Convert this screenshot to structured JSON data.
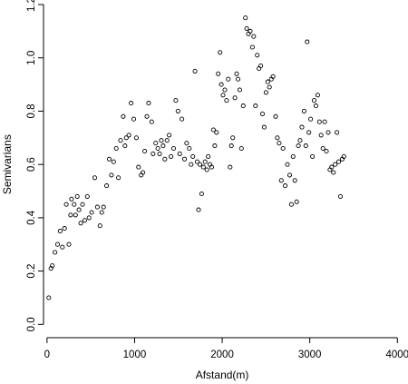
{
  "chart_data": {
    "type": "scatter",
    "title": "",
    "xlabel": "Afstand(m)",
    "ylabel": "Semivarians",
    "xlim": [
      -40,
      4080
    ],
    "ylim": [
      -0.05,
      1.2
    ],
    "xticks": [
      0,
      1000,
      2000,
      3000,
      4000
    ],
    "yticks": [
      0.0,
      0.2,
      0.4,
      0.6,
      0.8,
      1.0,
      1.2
    ],
    "xtick_labels": [
      "0",
      "1000",
      "2000",
      "3000",
      "4000"
    ],
    "ytick_labels": [
      "0.0",
      "0.2",
      "0.4",
      "0.6",
      "0.8",
      "1.0",
      "1.2"
    ],
    "grid": false,
    "marker": "open-circle",
    "points": [
      [
        20,
        0.1
      ],
      [
        45,
        0.21
      ],
      [
        60,
        0.22
      ],
      [
        90,
        0.27
      ],
      [
        120,
        0.3
      ],
      [
        150,
        0.35
      ],
      [
        175,
        0.29
      ],
      [
        200,
        0.36
      ],
      [
        220,
        0.45
      ],
      [
        250,
        0.3
      ],
      [
        270,
        0.41
      ],
      [
        280,
        0.47
      ],
      [
        310,
        0.45
      ],
      [
        325,
        0.41
      ],
      [
        345,
        0.48
      ],
      [
        365,
        0.43
      ],
      [
        385,
        0.38
      ],
      [
        405,
        0.45
      ],
      [
        430,
        0.39
      ],
      [
        460,
        0.48
      ],
      [
        480,
        0.4
      ],
      [
        510,
        0.42
      ],
      [
        545,
        0.55
      ],
      [
        575,
        0.44
      ],
      [
        605,
        0.37
      ],
      [
        625,
        0.42
      ],
      [
        645,
        0.44
      ],
      [
        680,
        0.52
      ],
      [
        710,
        0.62
      ],
      [
        735,
        0.56
      ],
      [
        760,
        0.61
      ],
      [
        790,
        0.66
      ],
      [
        815,
        0.55
      ],
      [
        840,
        0.69
      ],
      [
        870,
        0.78
      ],
      [
        890,
        0.67
      ],
      [
        905,
        0.7
      ],
      [
        935,
        0.71
      ],
      [
        960,
        0.83
      ],
      [
        990,
        0.77
      ],
      [
        1020,
        0.7
      ],
      [
        1045,
        0.59
      ],
      [
        1075,
        0.56
      ],
      [
        1095,
        0.57
      ],
      [
        1115,
        0.65
      ],
      [
        1140,
        0.78
      ],
      [
        1160,
        0.83
      ],
      [
        1195,
        0.76
      ],
      [
        1210,
        0.64
      ],
      [
        1240,
        0.68
      ],
      [
        1265,
        0.66
      ],
      [
        1285,
        0.64
      ],
      [
        1305,
        0.69
      ],
      [
        1325,
        0.67
      ],
      [
        1345,
        0.62
      ],
      [
        1370,
        0.69
      ],
      [
        1395,
        0.71
      ],
      [
        1415,
        0.63
      ],
      [
        1445,
        0.66
      ],
      [
        1470,
        0.84
      ],
      [
        1495,
        0.8
      ],
      [
        1515,
        0.64
      ],
      [
        1540,
        0.77
      ],
      [
        1570,
        0.62
      ],
      [
        1595,
        0.68
      ],
      [
        1625,
        0.66
      ],
      [
        1645,
        0.6
      ],
      [
        1665,
        0.63
      ],
      [
        1690,
        0.95
      ],
      [
        1715,
        0.61
      ],
      [
        1730,
        0.43
      ],
      [
        1745,
        0.6
      ],
      [
        1765,
        0.49
      ],
      [
        1785,
        0.59
      ],
      [
        1805,
        0.61
      ],
      [
        1825,
        0.58
      ],
      [
        1840,
        0.63
      ],
      [
        1860,
        0.6
      ],
      [
        1880,
        0.59
      ],
      [
        1900,
        0.73
      ],
      [
        1915,
        0.67
      ],
      [
        1935,
        0.72
      ],
      [
        1955,
        0.94
      ],
      [
        1975,
        1.02
      ],
      [
        1990,
        0.9
      ],
      [
        2010,
        0.86
      ],
      [
        2030,
        0.88
      ],
      [
        2050,
        0.84
      ],
      [
        2070,
        0.92
      ],
      [
        2090,
        0.59
      ],
      [
        2105,
        0.67
      ],
      [
        2120,
        0.7
      ],
      [
        2145,
        0.85
      ],
      [
        2165,
        0.94
      ],
      [
        2180,
        0.92
      ],
      [
        2200,
        0.88
      ],
      [
        2220,
        0.66
      ],
      [
        2240,
        0.82
      ],
      [
        2265,
        1.15
      ],
      [
        2280,
        1.11
      ],
      [
        2300,
        1.09
      ],
      [
        2320,
        1.1
      ],
      [
        2345,
        1.04
      ],
      [
        2360,
        1.08
      ],
      [
        2380,
        0.82
      ],
      [
        2400,
        1.01
      ],
      [
        2420,
        0.96
      ],
      [
        2440,
        0.97
      ],
      [
        2460,
        0.79
      ],
      [
        2480,
        0.74
      ],
      [
        2500,
        0.87
      ],
      [
        2520,
        0.91
      ],
      [
        2540,
        0.89
      ],
      [
        2560,
        0.92
      ],
      [
        2580,
        0.93
      ],
      [
        2610,
        0.78
      ],
      [
        2630,
        0.7
      ],
      [
        2650,
        0.68
      ],
      [
        2675,
        0.54
      ],
      [
        2695,
        0.66
      ],
      [
        2720,
        0.52
      ],
      [
        2745,
        0.6
      ],
      [
        2770,
        0.56
      ],
      [
        2790,
        0.45
      ],
      [
        2810,
        0.63
      ],
      [
        2830,
        0.54
      ],
      [
        2850,
        0.46
      ],
      [
        2870,
        0.67
      ],
      [
        2890,
        0.69
      ],
      [
        2910,
        0.74
      ],
      [
        2935,
        0.8
      ],
      [
        2955,
        0.67
      ],
      [
        2970,
        1.06
      ],
      [
        2990,
        0.72
      ],
      [
        3010,
        0.77
      ],
      [
        3030,
        0.63
      ],
      [
        3050,
        0.84
      ],
      [
        3070,
        0.82
      ],
      [
        3090,
        0.86
      ],
      [
        3110,
        0.76
      ],
      [
        3130,
        0.71
      ],
      [
        3150,
        0.66
      ],
      [
        3170,
        0.76
      ],
      [
        3190,
        0.65
      ],
      [
        3210,
        0.72
      ],
      [
        3230,
        0.58
      ],
      [
        3250,
        0.59
      ],
      [
        3270,
        0.57
      ],
      [
        3290,
        0.6
      ],
      [
        3310,
        0.72
      ],
      [
        3330,
        0.61
      ],
      [
        3350,
        0.48
      ],
      [
        3370,
        0.62
      ],
      [
        3390,
        0.63
      ]
    ]
  }
}
